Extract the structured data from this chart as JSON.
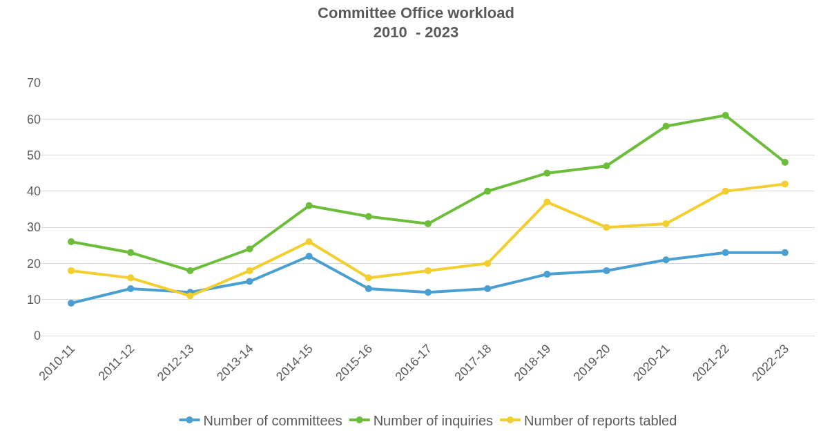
{
  "chart_data": {
    "type": "line",
    "title": "Committee Office workload\n2010  - 2023",
    "categories": [
      "2010-11",
      "2011-12",
      "2012-13",
      "2013-14",
      "2014-15",
      "2015-16",
      "2016-17",
      "2017-18",
      "2018-19",
      "2019-20",
      "2020-21",
      "2021-22",
      "2022-23"
    ],
    "series": [
      {
        "name": "Number of committees",
        "color": "#4a9fd2",
        "values": [
          9,
          13,
          12,
          15,
          22,
          13,
          12,
          13,
          17,
          18,
          21,
          23,
          23
        ]
      },
      {
        "name": "Number of inquiries",
        "color": "#6bbd3a",
        "values": [
          26,
          23,
          18,
          24,
          36,
          33,
          31,
          40,
          45,
          47,
          58,
          61,
          48
        ]
      },
      {
        "name": "Number of reports tabled",
        "color": "#f2cf2e",
        "values": [
          18,
          16,
          11,
          18,
          26,
          16,
          18,
          20,
          37,
          30,
          31,
          40,
          42
        ]
      }
    ],
    "ylim": [
      0,
      70
    ],
    "yticks": [
      0,
      10,
      20,
      30,
      40,
      50,
      60,
      70
    ],
    "grid": "y",
    "legend": "bottom",
    "marker": "circle",
    "line_style": "solid"
  }
}
